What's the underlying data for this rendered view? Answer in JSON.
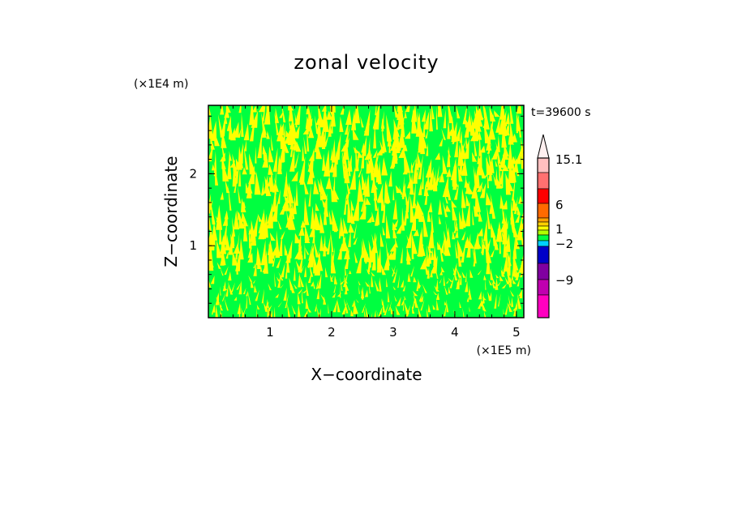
{
  "chart_data": {
    "type": "heatmap",
    "title": "zonal velocity",
    "xlabel": "X−coordinate",
    "ylabel": "Z−coordinate",
    "x_scale_label": "(×1E5 m)",
    "y_scale_label": "(×1E4 m)",
    "time_label": "t=39600 s",
    "xlim": [
      0,
      5.12
    ],
    "ylim": [
      0,
      2.95
    ],
    "x_ticks": [
      "1",
      "2",
      "3",
      "4",
      "5"
    ],
    "y_ticks": [
      "1",
      "2"
    ],
    "field_colors": {
      "low": "#00ff40",
      "high": "#ffff00"
    },
    "colorbar": {
      "labels": [
        "15.1",
        "6",
        "1",
        "−2",
        "−9"
      ],
      "levels_top_to_bottom": [
        {
          "color": "#ffc0c0"
        },
        {
          "color": "#ff7070"
        },
        {
          "color": "#ff0000"
        },
        {
          "color": "#ff6a00"
        },
        {
          "color": "#ffa000"
        },
        {
          "color": "#ffd000"
        },
        {
          "color": "#ffff00"
        },
        {
          "color": "#b0ff00"
        },
        {
          "color": "#00ff40"
        },
        {
          "color": "#00d0ff"
        },
        {
          "color": "#0060ff"
        },
        {
          "color": "#0000c8"
        },
        {
          "color": "#3000a0"
        },
        {
          "color": "#8000a0"
        },
        {
          "color": "#c000b0"
        },
        {
          "color": "#ff00c0"
        }
      ],
      "extend_top_color": "#fff0f0"
    }
  }
}
